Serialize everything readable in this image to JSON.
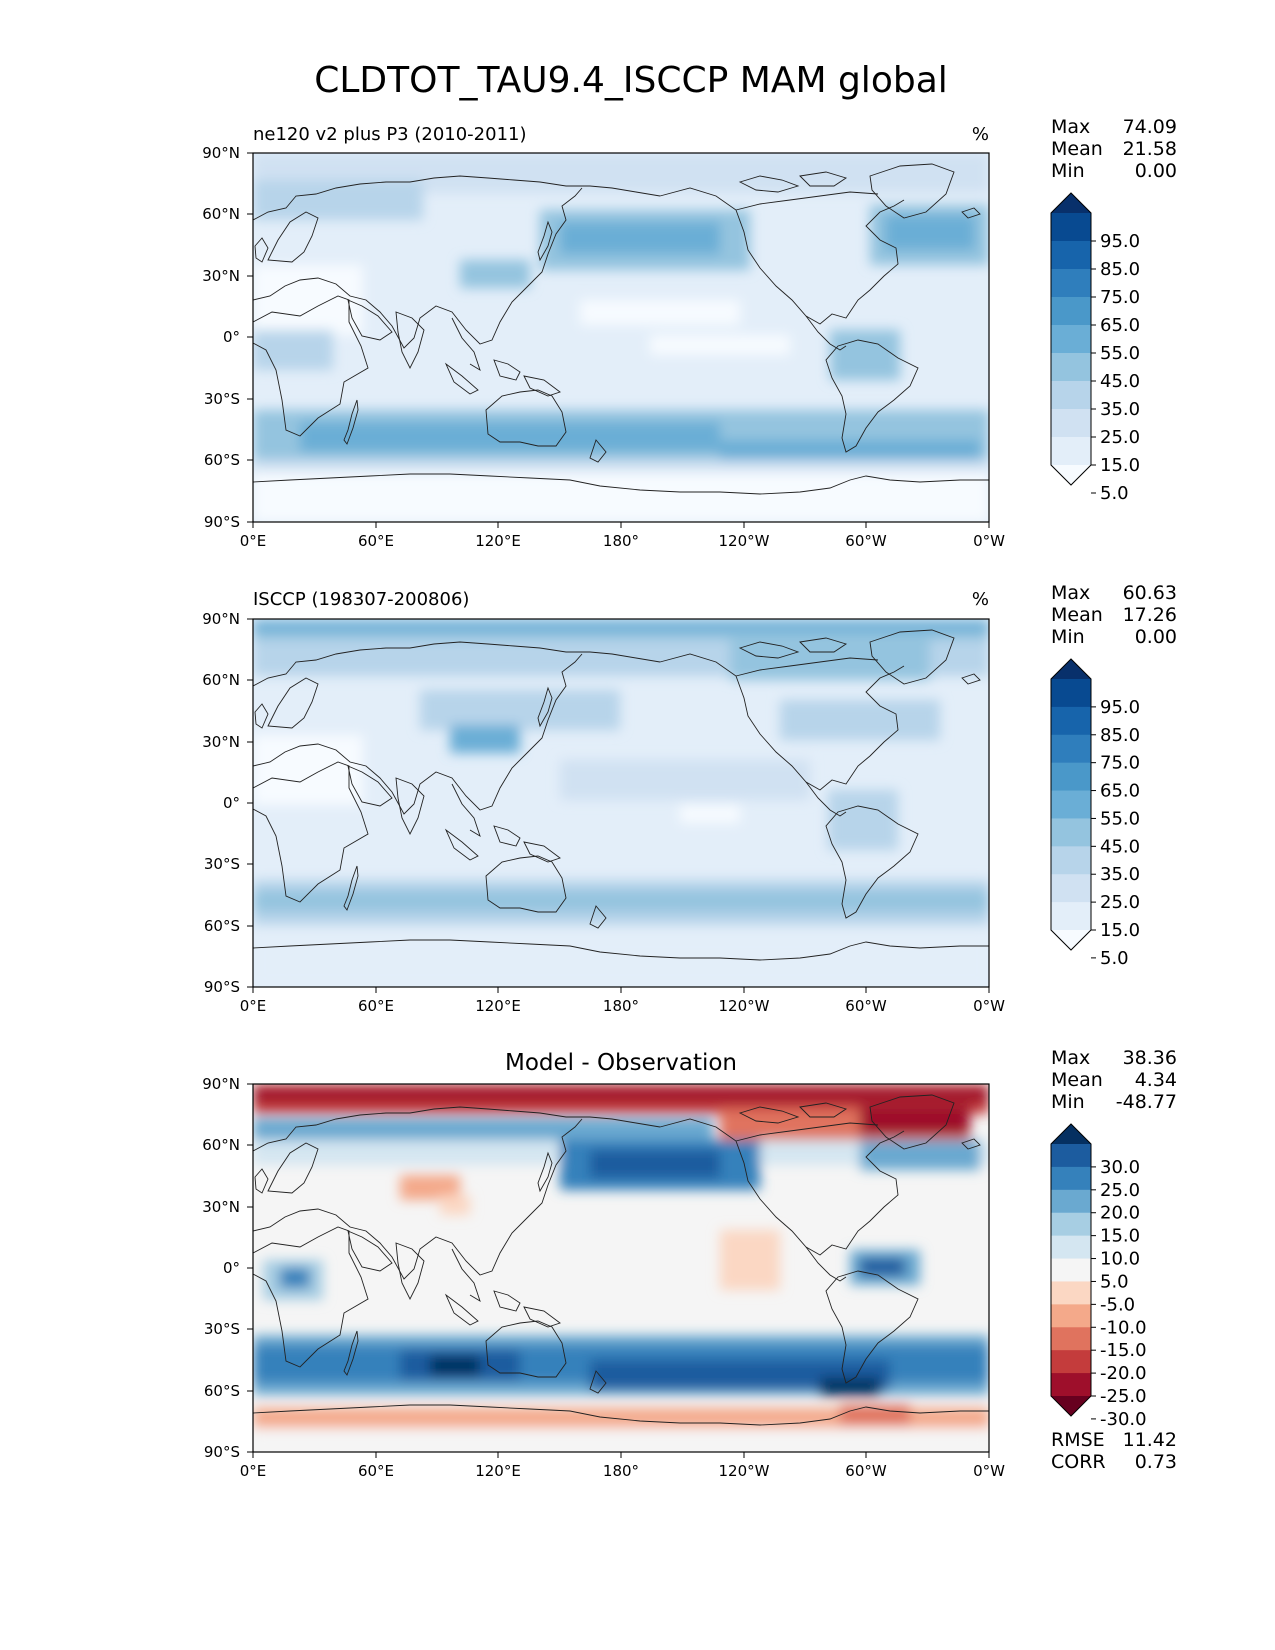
{
  "title": "CLDTOT_TAU9.4_ISCCP MAM global",
  "axes": {
    "lat_ticks": [
      "90°N",
      "60°N",
      "30°N",
      "0°",
      "30°S",
      "60°S",
      "90°S"
    ],
    "lon_ticks": [
      "0°E",
      "60°E",
      "120°E",
      "180°",
      "120°W",
      "60°W",
      "0°W"
    ]
  },
  "panels": [
    {
      "id": "model",
      "left_title": "ne120 v2 plus P3 (2010-2011)",
      "right_title": "%",
      "stats": [
        {
          "label": "Max",
          "value": "74.09"
        },
        {
          "label": "Mean",
          "value": "21.58"
        },
        {
          "label": "Min",
          "value": "0.00"
        }
      ],
      "colorbar": {
        "labels": [
          "95.0",
          "85.0",
          "75.0",
          "65.0",
          "55.0",
          "45.0",
          "35.0",
          "25.0",
          "15.0",
          "5.0"
        ],
        "colors": [
          "#08306b",
          "#084a91",
          "#1764ab",
          "#2f7ebc",
          "#4a98c9",
          "#6aaed6",
          "#94c4df",
          "#b7d4ea",
          "#d0e1f2",
          "#e3eef9",
          "#f7fbff"
        ]
      }
    },
    {
      "id": "obs",
      "left_title": "ISCCP (198307-200806)",
      "right_title": "%",
      "stats": [
        {
          "label": "Max",
          "value": "60.63"
        },
        {
          "label": "Mean",
          "value": "17.26"
        },
        {
          "label": "Min",
          "value": "0.00"
        }
      ],
      "colorbar": {
        "labels": [
          "95.0",
          "85.0",
          "75.0",
          "65.0",
          "55.0",
          "45.0",
          "35.0",
          "25.0",
          "15.0",
          "5.0"
        ],
        "colors": [
          "#08306b",
          "#084a91",
          "#1764ab",
          "#2f7ebc",
          "#4a98c9",
          "#6aaed6",
          "#94c4df",
          "#b7d4ea",
          "#d0e1f2",
          "#e3eef9",
          "#f7fbff"
        ]
      }
    },
    {
      "id": "diff",
      "center_title": "Model - Observation",
      "stats": [
        {
          "label": "Max",
          "value": "38.36"
        },
        {
          "label": "Mean",
          "value": "4.34"
        },
        {
          "label": "Min",
          "value": "-48.77"
        }
      ],
      "colorbar": {
        "labels": [
          "30.0",
          "25.0",
          "20.0",
          "15.0",
          "10.0",
          "5.0",
          "-5.0",
          "-10.0",
          "-15.0",
          "-20.0",
          "-25.0",
          "-30.0"
        ],
        "colors": [
          "#053061",
          "#1c5c9f",
          "#3581bb",
          "#6aa9d0",
          "#a7cee3",
          "#d4e6f1",
          "#f5f5f5",
          "#fbd7c3",
          "#f4a98a",
          "#e0735e",
          "#c43c3c",
          "#9e0f2b",
          "#67001f"
        ]
      },
      "metrics": [
        {
          "label": "RMSE",
          "value": "11.42"
        },
        {
          "label": "CORR",
          "value": "0.73"
        }
      ]
    }
  ]
}
